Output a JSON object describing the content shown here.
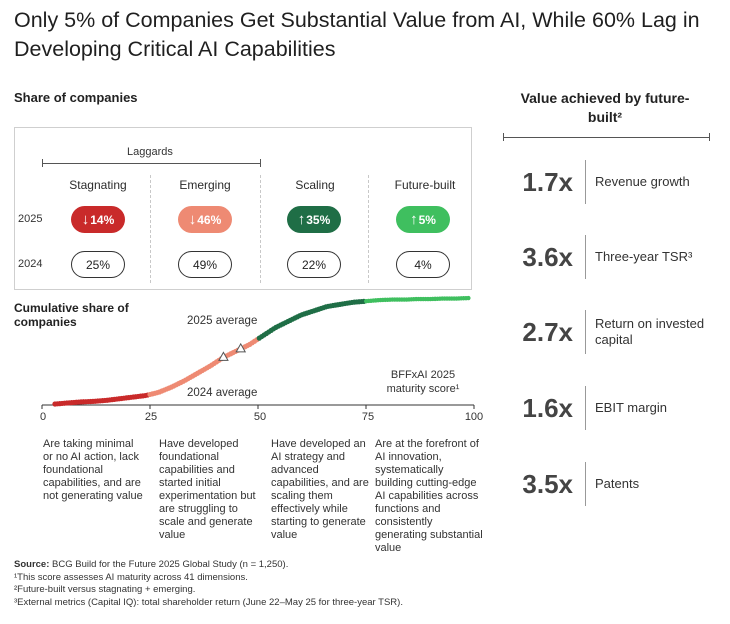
{
  "title": "Only 5% of Companies Get Substantial Value from AI, While 60% Lag in Developing Critical AI Capabilities",
  "share_label": "Share of companies",
  "laggards_label": "Laggards",
  "years": [
    "2025",
    "2024"
  ],
  "colors": {
    "stagnating": "#c92a2a",
    "emerging": "#ee8a73",
    "scaling": "#1f6e46",
    "future_built": "#3fbf5f"
  },
  "categories": [
    {
      "name": "Stagnating",
      "v2025": "14%",
      "dir2025": "down",
      "v2024": "25%"
    },
    {
      "name": "Emerging",
      "v2025": "46%",
      "dir2025": "down",
      "v2024": "49%"
    },
    {
      "name": "Scaling",
      "v2025": "35%",
      "dir2025": "up",
      "v2024": "22%"
    },
    {
      "name": "Future-built",
      "v2025": "5%",
      "dir2025": "up",
      "v2024": "4%"
    }
  ],
  "cumulative_label": "Cumulative share of companies",
  "annotations": {
    "avg_2025": "2025 average",
    "avg_2024": "2024 average",
    "score_label": "BFFxAI 2025 maturity score¹"
  },
  "chart_data": {
    "type": "scatter",
    "xlim": [
      0,
      100
    ],
    "xticks": [
      "0",
      "25",
      "50",
      "75",
      "100"
    ],
    "x": [
      3,
      6,
      9,
      12,
      15,
      18,
      21,
      24,
      27,
      30,
      33,
      36,
      39,
      42,
      45,
      48,
      51,
      54,
      57,
      60,
      63,
      66,
      69,
      72,
      75,
      78,
      81,
      84,
      87,
      90,
      93,
      96,
      99
    ],
    "y": [
      0,
      1,
      2,
      2.5,
      3.5,
      5,
      6.5,
      8,
      11,
      16,
      22,
      29,
      36,
      44,
      50,
      56,
      64,
      72,
      78,
      84,
      88,
      92,
      94,
      96,
      97,
      98,
      98.5,
      98.5,
      99,
      99,
      99.5,
      99.5,
      100
    ],
    "ylim": [
      0,
      100
    ],
    "segments": [
      {
        "name": "Stagnating",
        "range": [
          0,
          25
        ]
      },
      {
        "name": "Emerging",
        "range": [
          25,
          50
        ]
      },
      {
        "name": "Scaling",
        "range": [
          50,
          75
        ]
      },
      {
        "name": "Future-built",
        "range": [
          75,
          100
        ]
      }
    ],
    "average_2025": 46,
    "average_2024": 42
  },
  "descriptions": [
    "Are taking minimal or no AI action, lack foundational capabilities, and are not generating value",
    "Have developed foundational capabilities and started initial experimentation but are struggling to scale and generate value",
    "Have developed an AI strategy and advanced capabilities, and are scaling them effectively while starting to generate value",
    "Are at the forefront of AI innovation, systematically building cutting-edge AI capabilities across functions and consistently generating substantial value"
  ],
  "value_head": "Value achieved by future-built²",
  "metrics": [
    {
      "value": "1.7x",
      "label": "Revenue growth"
    },
    {
      "value": "3.6x",
      "label": "Three-year TSR³"
    },
    {
      "value": "2.7x",
      "label": "Return on invested capital"
    },
    {
      "value": "1.6x",
      "label": "EBIT margin"
    },
    {
      "value": "3.5x",
      "label": "Patents"
    }
  ],
  "footer": {
    "source_label": "Source:",
    "source_text": " BCG Build for the Future 2025 Global Study (n = 1,250).",
    "note1": "¹This score assesses AI maturity across 41 dimensions.",
    "note2": "²Future-built versus stagnating + emerging.",
    "note3": "³External metrics (Capital IQ): total shareholder return (June 22–May 25 for three-year TSR)."
  }
}
